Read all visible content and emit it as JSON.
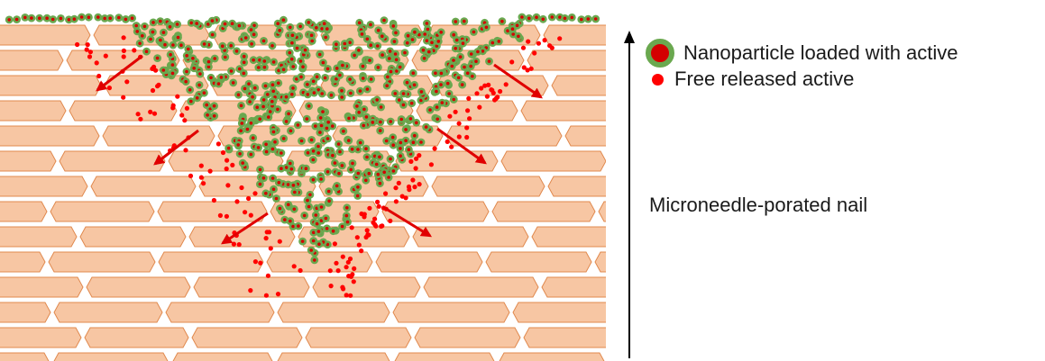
{
  "legend": {
    "nanoparticle_label": "Nanoparticle loaded with active",
    "free_active_label": "Free released active"
  },
  "axis_label": "Microneedle-porated nail",
  "colors": {
    "nail_cell_fill": "#f7c6a3",
    "nail_cell_stroke": "#e0894e",
    "nanoparticle_shell": "#6aa84f",
    "nanoparticle_core": "#d40000",
    "free_active": "#ff0000",
    "release_arrow": "#e00000",
    "axis_arrow": "#000000"
  },
  "icons": {
    "nanoparticle": "nanoparticle-icon",
    "free_active": "free-active-dot-icon",
    "axis": "arrow-up-icon"
  }
}
